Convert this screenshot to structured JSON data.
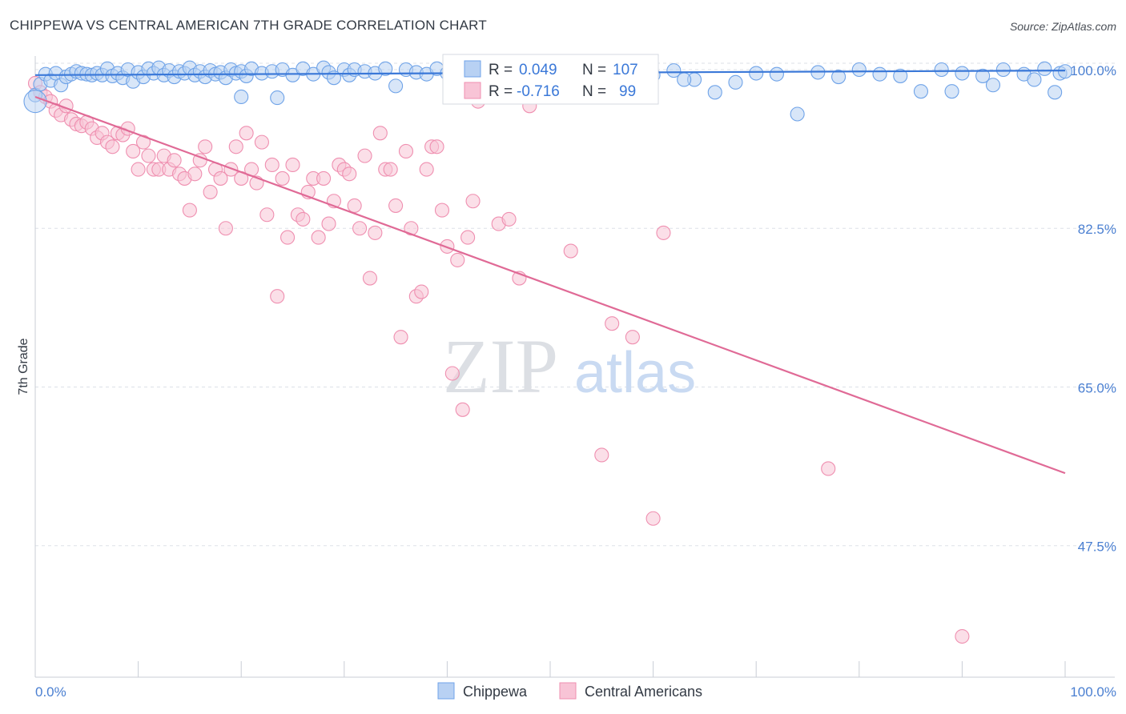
{
  "title": "CHIPPEWA VS CENTRAL AMERICAN 7TH GRADE CORRELATION CHART",
  "source": "Source: ZipAtlas.com",
  "watermark": {
    "zip": "ZIP",
    "atlas": "atlas"
  },
  "colors": {
    "blue": "#6fa3e8",
    "blue_fill": "#b8d1f3",
    "blue_line": "#3a78d8",
    "pink": "#ef8fb0",
    "pink_fill": "#f8c4d6",
    "pink_line": "#e06a96",
    "tick_text": "#4a7fd1",
    "grid": "#dde1e7"
  },
  "legend": {
    "rows": [
      {
        "r_label": "R =",
        "r_value": "0.049",
        "n_label": "N =",
        "n_value": "107"
      },
      {
        "r_label": "R =",
        "r_value": "-0.716",
        "n_label": "N =",
        "n_value": "99"
      }
    ]
  },
  "bottom_legend": [
    "Chippewa",
    "Central Americans"
  ],
  "chart_data": {
    "type": "scatter",
    "title": "CHIPPEWA VS CENTRAL AMERICAN 7TH GRADE CORRELATION CHART",
    "xlabel": "",
    "ylabel": "7th Grade",
    "xlim": [
      0,
      100
    ],
    "ylim": [
      33,
      101.5
    ],
    "x_tick_labels": [
      "0.0%",
      "100.0%"
    ],
    "y_ticks": [
      100.0,
      82.5,
      65.0,
      47.5
    ],
    "y_tick_labels": [
      "100.0%",
      "82.5%",
      "65.0%",
      "47.5%"
    ],
    "grid": true,
    "legend_position": "top-center",
    "series": [
      {
        "name": "Chippewa",
        "R": 0.049,
        "N": 107,
        "trend": {
          "x": [
            0,
            100
          ],
          "y": [
            99.4,
            99.9
          ]
        },
        "points": [
          [
            0,
            97.2
          ],
          [
            0.5,
            98.4
          ],
          [
            1,
            99.5
          ],
          [
            1.5,
            98.8
          ],
          [
            2,
            99.6
          ],
          [
            2.5,
            98.3
          ],
          [
            3,
            99.2
          ],
          [
            3.5,
            99.5
          ],
          [
            4,
            99.8
          ],
          [
            4.5,
            99.6
          ],
          [
            5,
            99.5
          ],
          [
            5.5,
            99.4
          ],
          [
            6,
            99.6
          ],
          [
            6.5,
            99.4
          ],
          [
            7,
            100.1
          ],
          [
            7.5,
            99.3
          ],
          [
            8,
            99.6
          ],
          [
            8.5,
            99.1
          ],
          [
            9,
            100.0
          ],
          [
            9.5,
            98.7
          ],
          [
            10,
            99.7
          ],
          [
            10.5,
            99.2
          ],
          [
            11,
            100.1
          ],
          [
            11.5,
            99.6
          ],
          [
            12,
            100.2
          ],
          [
            12.5,
            99.4
          ],
          [
            13,
            99.9
          ],
          [
            13.5,
            99.2
          ],
          [
            14,
            99.8
          ],
          [
            14.5,
            99.6
          ],
          [
            15,
            100.2
          ],
          [
            15.5,
            99.4
          ],
          [
            16,
            99.8
          ],
          [
            16.5,
            99.2
          ],
          [
            17,
            99.9
          ],
          [
            17.5,
            99.5
          ],
          [
            18,
            99.7
          ],
          [
            18.5,
            99.1
          ],
          [
            19,
            100.0
          ],
          [
            19.5,
            99.6
          ],
          [
            20,
            99.8
          ],
          [
            20.5,
            99.3
          ],
          [
            21,
            100.1
          ],
          [
            22,
            99.6
          ],
          [
            23,
            99.8
          ],
          [
            23.5,
            96.9
          ],
          [
            24,
            100.0
          ],
          [
            25,
            99.4
          ],
          [
            26,
            100.1
          ],
          [
            27,
            99.5
          ],
          [
            28,
            100.2
          ],
          [
            28.5,
            99.7
          ],
          [
            29,
            99.1
          ],
          [
            30,
            100.0
          ],
          [
            30.5,
            99.4
          ],
          [
            31,
            100.0
          ],
          [
            32,
            99.8
          ],
          [
            33,
            99.6
          ],
          [
            34,
            100.1
          ],
          [
            35,
            98.2
          ],
          [
            36,
            100.0
          ],
          [
            37,
            99.7
          ],
          [
            38,
            99.5
          ],
          [
            39,
            100.1
          ],
          [
            40,
            99.6
          ],
          [
            41,
            99.2
          ],
          [
            42,
            99.9
          ],
          [
            43,
            99.4
          ],
          [
            44,
            100.0
          ],
          [
            45,
            99.5
          ],
          [
            46,
            99.6
          ],
          [
            47,
            100.1
          ],
          [
            48,
            99.3
          ],
          [
            49,
            99.8
          ],
          [
            50,
            100.0
          ],
          [
            52,
            99.7
          ],
          [
            54,
            100.0
          ],
          [
            56,
            99.6
          ],
          [
            58,
            100.1
          ],
          [
            60,
            99.4
          ],
          [
            62,
            99.9
          ],
          [
            64,
            98.9
          ],
          [
            66,
            97.5
          ],
          [
            68,
            98.6
          ],
          [
            70,
            99.6
          ],
          [
            72,
            99.5
          ],
          [
            74,
            95.1
          ],
          [
            76,
            99.7
          ],
          [
            78,
            99.2
          ],
          [
            80,
            100.0
          ],
          [
            82,
            99.5
          ],
          [
            84,
            99.3
          ],
          [
            86,
            97.6
          ],
          [
            88,
            100.0
          ],
          [
            89,
            97.6
          ],
          [
            90,
            99.6
          ],
          [
            92,
            99.3
          ],
          [
            93,
            98.3
          ],
          [
            94,
            100.0
          ],
          [
            96,
            99.5
          ],
          [
            97,
            98.9
          ],
          [
            98,
            100.1
          ],
          [
            99,
            97.5
          ],
          [
            99.5,
            99.6
          ],
          [
            100,
            99.8
          ],
          [
            63,
            98.9
          ],
          [
            20,
            97.0
          ]
        ]
      },
      {
        "name": "Central Americans",
        "R": -0.716,
        "N": 99,
        "trend": {
          "x": [
            0,
            100
          ],
          "y": [
            97.0,
            55.5
          ]
        },
        "points": [
          [
            0,
            98.5
          ],
          [
            0.5,
            97.5
          ],
          [
            1,
            97.0
          ],
          [
            1.5,
            96.5
          ],
          [
            2,
            95.5
          ],
          [
            2.5,
            95.0
          ],
          [
            3,
            96.0
          ],
          [
            3.5,
            94.5
          ],
          [
            4,
            94.0
          ],
          [
            4.5,
            93.8
          ],
          [
            5,
            94.2
          ],
          [
            5.5,
            93.5
          ],
          [
            6,
            92.5
          ],
          [
            6.5,
            93.0
          ],
          [
            7,
            92.0
          ],
          [
            7.5,
            91.5
          ],
          [
            8,
            93.0
          ],
          [
            8.5,
            92.8
          ],
          [
            9,
            93.5
          ],
          [
            9.5,
            91.0
          ],
          [
            10,
            89.0
          ],
          [
            10.5,
            92.0
          ],
          [
            11,
            90.5
          ],
          [
            11.5,
            89.0
          ],
          [
            12,
            89.0
          ],
          [
            12.5,
            90.5
          ],
          [
            13,
            89.0
          ],
          [
            13.5,
            90.0
          ],
          [
            14,
            88.5
          ],
          [
            14.5,
            88.0
          ],
          [
            15,
            84.5
          ],
          [
            15.5,
            88.5
          ],
          [
            16,
            90.0
          ],
          [
            16.5,
            91.5
          ],
          [
            17,
            86.5
          ],
          [
            17.5,
            89.0
          ],
          [
            18,
            88.0
          ],
          [
            18.5,
            82.5
          ],
          [
            19,
            89.0
          ],
          [
            19.5,
            91.5
          ],
          [
            20,
            88.0
          ],
          [
            20.5,
            93.0
          ],
          [
            21,
            89.0
          ],
          [
            21.5,
            87.5
          ],
          [
            22,
            92.0
          ],
          [
            22.5,
            84.0
          ],
          [
            23,
            89.5
          ],
          [
            23.5,
            75.0
          ],
          [
            24,
            88.0
          ],
          [
            24.5,
            81.5
          ],
          [
            25,
            89.5
          ],
          [
            25.5,
            84.0
          ],
          [
            26,
            83.5
          ],
          [
            26.5,
            86.5
          ],
          [
            27,
            88.0
          ],
          [
            27.5,
            81.5
          ],
          [
            28,
            88.0
          ],
          [
            28.5,
            83.0
          ],
          [
            29,
            85.5
          ],
          [
            29.5,
            89.5
          ],
          [
            30,
            89.0
          ],
          [
            30.5,
            88.5
          ],
          [
            31,
            85.0
          ],
          [
            31.5,
            82.5
          ],
          [
            32,
            90.5
          ],
          [
            32.5,
            77.0
          ],
          [
            33,
            82.0
          ],
          [
            33.5,
            93.0
          ],
          [
            34,
            89.0
          ],
          [
            34.5,
            89.0
          ],
          [
            35,
            85.0
          ],
          [
            35.5,
            70.5
          ],
          [
            36,
            91.0
          ],
          [
            36.5,
            82.5
          ],
          [
            37,
            75.0
          ],
          [
            37.5,
            75.5
          ],
          [
            38,
            89.0
          ],
          [
            38.5,
            91.5
          ],
          [
            39,
            91.5
          ],
          [
            39.5,
            84.5
          ],
          [
            40,
            80.5
          ],
          [
            40.5,
            66.5
          ],
          [
            41,
            79.0
          ],
          [
            41.5,
            62.5
          ],
          [
            42,
            81.5
          ],
          [
            42.5,
            85.5
          ],
          [
            43,
            96.5
          ],
          [
            45,
            83.0
          ],
          [
            46,
            83.5
          ],
          [
            47,
            77.0
          ],
          [
            48,
            96.0
          ],
          [
            52,
            80.0
          ],
          [
            55,
            57.5
          ],
          [
            56,
            72.0
          ],
          [
            58,
            70.5
          ],
          [
            60,
            50.5
          ],
          [
            61,
            82.0
          ],
          [
            77,
            56.0
          ],
          [
            90,
            37.5
          ]
        ]
      }
    ]
  }
}
